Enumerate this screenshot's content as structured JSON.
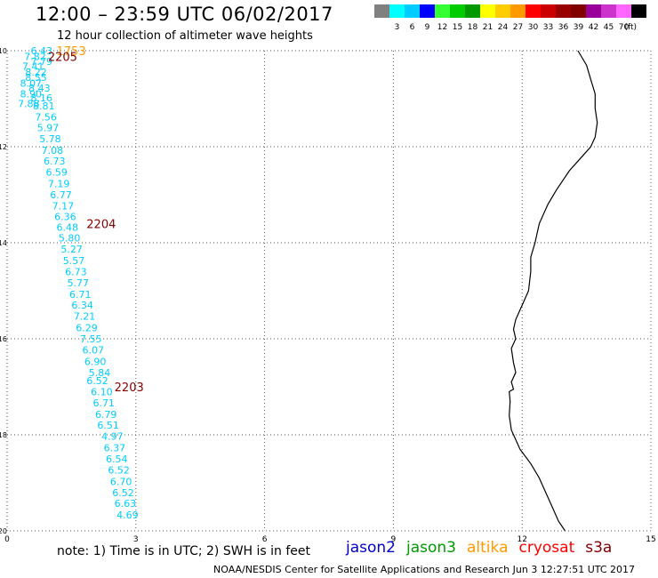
{
  "header": {
    "title": "12:00 – 23:59 UTC 06/02/2017",
    "subtitle": "12 hour collection of altimeter wave heights"
  },
  "legend": {
    "unit": "(ft)",
    "bins": [
      {
        "label": "",
        "color": "#808080"
      },
      {
        "label": "3",
        "color": "#00ffff"
      },
      {
        "label": "6",
        "color": "#00ccff"
      },
      {
        "label": "9",
        "color": "#0000ff"
      },
      {
        "label": "12",
        "color": "#33ff33"
      },
      {
        "label": "15",
        "color": "#00cc00"
      },
      {
        "label": "18",
        "color": "#009900"
      },
      {
        "label": "21",
        "color": "#ffff00"
      },
      {
        "label": "24",
        "color": "#ffcc00"
      },
      {
        "label": "27",
        "color": "#ff9900"
      },
      {
        "label": "30",
        "color": "#ff0000"
      },
      {
        "label": "33",
        "color": "#cc0000"
      },
      {
        "label": "36",
        "color": "#990000"
      },
      {
        "label": "39",
        "color": "#800000"
      },
      {
        "label": "42",
        "color": "#990099"
      },
      {
        "label": "45",
        "color": "#cc33cc"
      },
      {
        "label": "70",
        "color": "#ff66ff"
      },
      {
        "label": "",
        "color": "#000000"
      }
    ]
  },
  "map": {
    "x_range": [
      0,
      15
    ],
    "y_range": [
      -20,
      -10
    ],
    "x_ticks": [
      "0",
      "3",
      "6",
      "9",
      "12",
      "15"
    ],
    "y_ticks": [
      "-10",
      "-12",
      "-14",
      "-16",
      "-18",
      "-20"
    ],
    "grid": "dotted",
    "wave_color": "#00ccff",
    "coastline": [
      [
        13.3,
        -10.0
      ],
      [
        13.5,
        -10.3
      ],
      [
        13.6,
        -10.6
      ],
      [
        13.7,
        -10.9
      ],
      [
        13.7,
        -11.2
      ],
      [
        13.75,
        -11.5
      ],
      [
        13.7,
        -11.8
      ],
      [
        13.6,
        -12.0
      ],
      [
        13.4,
        -12.2
      ],
      [
        13.1,
        -12.5
      ],
      [
        12.8,
        -12.9
      ],
      [
        12.6,
        -13.2
      ],
      [
        12.4,
        -13.6
      ],
      [
        12.3,
        -14.0
      ],
      [
        12.2,
        -14.3
      ],
      [
        12.2,
        -14.6
      ],
      [
        12.15,
        -15.0
      ],
      [
        12.0,
        -15.3
      ],
      [
        11.85,
        -15.6
      ],
      [
        11.8,
        -15.8
      ],
      [
        11.85,
        -16.0
      ],
      [
        11.75,
        -16.2
      ],
      [
        11.8,
        -16.5
      ],
      [
        11.85,
        -16.7
      ],
      [
        11.75,
        -16.9
      ],
      [
        11.8,
        -17.05
      ],
      [
        11.7,
        -17.1
      ],
      [
        11.72,
        -17.3
      ],
      [
        11.7,
        -17.6
      ],
      [
        11.75,
        -17.9
      ],
      [
        11.85,
        -18.1
      ],
      [
        11.95,
        -18.3
      ],
      [
        12.2,
        -18.6
      ],
      [
        12.4,
        -18.9
      ],
      [
        12.55,
        -19.2
      ],
      [
        12.7,
        -19.5
      ],
      [
        12.85,
        -19.8
      ],
      [
        13.0,
        -20.0
      ]
    ],
    "tracks": [
      {
        "time": "1753",
        "color": "#ff9900",
        "lon": 1.15,
        "lat": -10.0
      },
      {
        "time": "2205",
        "color": "#800000",
        "lon": 0.95,
        "lat": -10.12
      },
      {
        "time": "2204",
        "color": "#800000",
        "lon": 1.85,
        "lat": -13.6
      },
      {
        "time": "2203",
        "color": "#800000",
        "lon": 2.5,
        "lat": -17.0
      }
    ],
    "wave_heights": [
      {
        "value": "6.43",
        "lon": 0.55,
        "lat": -10.0
      },
      {
        "value": "7.82",
        "lon": 0.4,
        "lat": -10.12
      },
      {
        "value": "7.79",
        "lon": 0.55,
        "lat": -10.22
      },
      {
        "value": "7.41",
        "lon": 0.35,
        "lat": -10.32
      },
      {
        "value": "8.22",
        "lon": 0.42,
        "lat": -10.44
      },
      {
        "value": "8.55",
        "lon": 0.42,
        "lat": -10.56
      },
      {
        "value": "8.07",
        "lon": 0.3,
        "lat": -10.68
      },
      {
        "value": "8.43",
        "lon": 0.5,
        "lat": -10.78
      },
      {
        "value": "8.90",
        "lon": 0.3,
        "lat": -10.9
      },
      {
        "value": "8.16",
        "lon": 0.55,
        "lat": -10.98
      },
      {
        "value": "7.88",
        "lon": 0.25,
        "lat": -11.1
      },
      {
        "value": "8.81",
        "lon": 0.6,
        "lat": -11.15
      },
      {
        "value": "7.56",
        "lon": 0.65,
        "lat": -11.38
      },
      {
        "value": "5.97",
        "lon": 0.7,
        "lat": -11.6
      },
      {
        "value": "5.78",
        "lon": 0.75,
        "lat": -11.83
      },
      {
        "value": "7.08",
        "lon": 0.8,
        "lat": -12.07
      },
      {
        "value": "6.73",
        "lon": 0.85,
        "lat": -12.3
      },
      {
        "value": "6.59",
        "lon": 0.9,
        "lat": -12.53
      },
      {
        "value": "7.19",
        "lon": 0.95,
        "lat": -12.77
      },
      {
        "value": "6.77",
        "lon": 1.0,
        "lat": -13.0
      },
      {
        "value": "7.17",
        "lon": 1.05,
        "lat": -13.23
      },
      {
        "value": "6.36",
        "lon": 1.1,
        "lat": -13.45
      },
      {
        "value": "6.48",
        "lon": 1.15,
        "lat": -13.68
      },
      {
        "value": "5.80",
        "lon": 1.2,
        "lat": -13.9
      },
      {
        "value": "5.27",
        "lon": 1.25,
        "lat": -14.13
      },
      {
        "value": "5.57",
        "lon": 1.3,
        "lat": -14.37
      },
      {
        "value": "6.73",
        "lon": 1.35,
        "lat": -14.6
      },
      {
        "value": "5.77",
        "lon": 1.4,
        "lat": -14.83
      },
      {
        "value": "6.71",
        "lon": 1.45,
        "lat": -15.07
      },
      {
        "value": "6.34",
        "lon": 1.5,
        "lat": -15.3
      },
      {
        "value": "7.21",
        "lon": 1.55,
        "lat": -15.53
      },
      {
        "value": "6.29",
        "lon": 1.6,
        "lat": -15.77
      },
      {
        "value": "7.55",
        "lon": 1.7,
        "lat": -16.0
      },
      {
        "value": "6.07",
        "lon": 1.75,
        "lat": -16.23
      },
      {
        "value": "6.90",
        "lon": 1.8,
        "lat": -16.47
      },
      {
        "value": "5.84",
        "lon": 1.9,
        "lat": -16.7
      },
      {
        "value": "6.52",
        "lon": 1.85,
        "lat": -16.87
      },
      {
        "value": "6.10",
        "lon": 1.95,
        "lat": -17.1
      },
      {
        "value": "6.71",
        "lon": 2.0,
        "lat": -17.33
      },
      {
        "value": "6.79",
        "lon": 2.05,
        "lat": -17.57
      },
      {
        "value": "6.51",
        "lon": 2.1,
        "lat": -17.8
      },
      {
        "value": "4.97",
        "lon": 2.2,
        "lat": -18.03
      },
      {
        "value": "6.37",
        "lon": 2.25,
        "lat": -18.27
      },
      {
        "value": "6.54",
        "lon": 2.3,
        "lat": -18.5
      },
      {
        "value": "6.52",
        "lon": 2.35,
        "lat": -18.73
      },
      {
        "value": "6.70",
        "lon": 2.4,
        "lat": -18.97
      },
      {
        "value": "6.52",
        "lon": 2.45,
        "lat": -19.2
      },
      {
        "value": "6.63",
        "lon": 2.5,
        "lat": -19.43
      },
      {
        "value": "4.69",
        "lon": 2.55,
        "lat": -19.67
      }
    ]
  },
  "note": "note:  1) Time is in UTC;  2) SWH is in feet",
  "satellites": [
    {
      "name": "jason2",
      "color": "#0000cc"
    },
    {
      "name": "jason3",
      "color": "#009900"
    },
    {
      "name": "altika",
      "color": "#ff9900"
    },
    {
      "name": "cryosat",
      "color": "#ff0000"
    },
    {
      "name": "s3a",
      "color": "#800000"
    }
  ],
  "footer": "NOAA/NESDIS Center for Satellite Applications and Research    Jun  3 12:27:51 UTC 2017"
}
